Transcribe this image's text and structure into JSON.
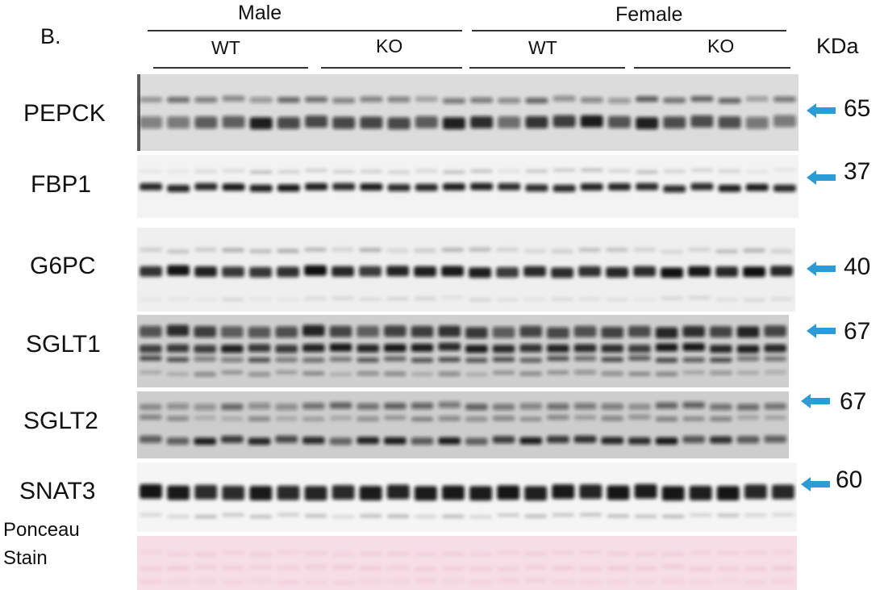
{
  "figure": {
    "panel_letter": "B.",
    "groups": {
      "male": "Male",
      "female": "Female",
      "wt": "WT",
      "ko": "KO"
    },
    "mw_unit": "KDa",
    "ponceau_label_line1": "Ponceau",
    "ponceau_label_line2": "Stain",
    "arrow_color": "#2d9bd6",
    "ponceau_color": "#f6dde6",
    "lanes_per_blot": 24,
    "rows": [
      {
        "protein": "PEPCK",
        "mw": "65"
      },
      {
        "protein": "FBP1",
        "mw": "37"
      },
      {
        "protein": "G6PC",
        "mw": "40"
      },
      {
        "protein": "SGLT1",
        "mw": "67"
      },
      {
        "protein": "SGLT2",
        "mw": "67"
      },
      {
        "protein": "SNAT3",
        "mw": "60"
      }
    ]
  }
}
